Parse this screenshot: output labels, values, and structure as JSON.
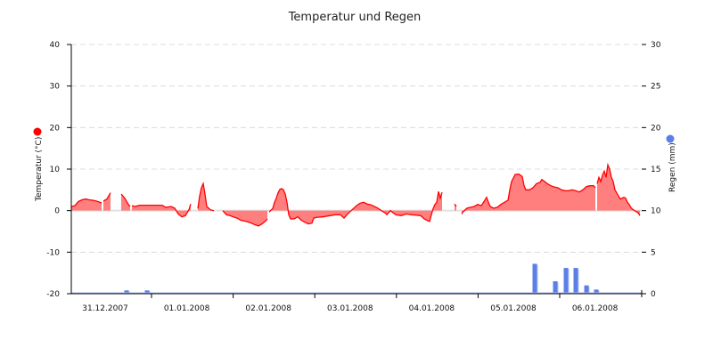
{
  "chart_data": {
    "type": "area+bar",
    "title": "Temperatur und Regen",
    "x_labels": [
      "31.12.2007",
      "01.01.2008",
      "02.01.2008",
      "03.01.2008",
      "04.01.2008",
      "05.01.2008",
      "06.01.2008"
    ],
    "y_left": {
      "label": "Temperatur (°C)",
      "ticks": [
        40,
        30,
        20,
        10,
        0,
        -10,
        -20
      ],
      "range": [
        -20,
        40
      ],
      "legend_color": "#ff0000"
    },
    "y_right": {
      "label": "Regen (mm)",
      "ticks": [
        30,
        25,
        20,
        15,
        10,
        5,
        0
      ],
      "range": [
        0,
        30
      ],
      "legend_color": "#5b7fe8"
    },
    "grid": true,
    "series": [
      {
        "name": "Temperatur",
        "type": "area",
        "color": "#ff0000",
        "fill": "#ff7f7f",
        "unit": "°C",
        "segments": [
          [
            [
              80,
              1.0
            ],
            [
              84,
              1.2
            ],
            [
              88,
              2.2
            ],
            [
              92,
              2.6
            ],
            [
              96,
              2.8
            ],
            [
              100,
              2.6
            ],
            [
              104,
              2.5
            ],
            [
              108,
              2.3
            ],
            [
              112,
              2.0
            ],
            [
              114,
              1.9
            ]
          ],
          [
            [
              116,
              2.3
            ],
            [
              120,
              2.8
            ],
            [
              124,
              4.3
            ]
          ],
          [
            [
              136,
              4.0
            ],
            [
              140,
              3.0
            ],
            [
              144,
              1.5
            ],
            [
              146,
              1.0
            ]
          ],
          [
            [
              148,
              1.2
            ],
            [
              152,
              1.0
            ],
            [
              156,
              1.3
            ],
            [
              160,
              1.3
            ],
            [
              168,
              1.3
            ],
            [
              176,
              1.3
            ],
            [
              182,
              1.3
            ],
            [
              186,
              0.8
            ],
            [
              192,
              1.0
            ],
            [
              196,
              0.6
            ],
            [
              200,
              -0.8
            ],
            [
              204,
              -1.5
            ],
            [
              208,
              -1.2
            ],
            [
              212,
              0.2
            ],
            [
              214,
              1.6
            ]
          ],
          [
            [
              222,
              0.5
            ],
            [
              224,
              3.5
            ],
            [
              226,
              5.5
            ],
            [
              228,
              6.5
            ],
            [
              230,
              4.0
            ],
            [
              232,
              1.0
            ],
            [
              236,
              0.2
            ],
            [
              240,
              0.0
            ]
          ],
          [
            [
              250,
              0.0
            ],
            [
              254,
              -1.0
            ],
            [
              258,
              -1.2
            ],
            [
              262,
              -1.5
            ],
            [
              266,
              -1.8
            ],
            [
              270,
              -2.3
            ],
            [
              274,
              -2.5
            ],
            [
              278,
              -2.7
            ],
            [
              282,
              -3.0
            ],
            [
              286,
              -3.4
            ],
            [
              290,
              -3.7
            ],
            [
              294,
              -3.2
            ],
            [
              298,
              -2.5
            ],
            [
              300,
              -2.0
            ]
          ],
          [
            [
              302,
              -0.3
            ],
            [
              306,
              0.5
            ],
            [
              308,
              2.0
            ],
            [
              310,
              3.0
            ],
            [
              312,
              4.3
            ],
            [
              314,
              5.1
            ],
            [
              316,
              5.3
            ],
            [
              318,
              5.0
            ],
            [
              320,
              4.0
            ],
            [
              322,
              2.0
            ],
            [
              324,
              -1.0
            ],
            [
              326,
              -2.0
            ],
            [
              330,
              -2.0
            ],
            [
              334,
              -1.5
            ],
            [
              338,
              -2.3
            ],
            [
              342,
              -2.8
            ],
            [
              346,
              -3.2
            ],
            [
              350,
              -3.0
            ],
            [
              352,
              -1.8
            ],
            [
              356,
              -1.6
            ],
            [
              362,
              -1.5
            ],
            [
              370,
              -1.2
            ],
            [
              376,
              -1.0
            ],
            [
              382,
              -1.0
            ],
            [
              386,
              -1.8
            ],
            [
              390,
              -0.8
            ],
            [
              394,
              0.0
            ],
            [
              400,
              1.2
            ],
            [
              404,
              1.8
            ],
            [
              408,
              2.0
            ],
            [
              412,
              1.6
            ],
            [
              416,
              1.4
            ],
            [
              420,
              1.0
            ],
            [
              424,
              0.6
            ],
            [
              428,
              0.0
            ],
            [
              432,
              -0.5
            ],
            [
              434,
              -1.0
            ],
            [
              438,
              0.0
            ],
            [
              444,
              -1.0
            ],
            [
              450,
              -1.2
            ],
            [
              456,
              -0.8
            ],
            [
              462,
              -1.0
            ],
            [
              468,
              -1.1
            ],
            [
              472,
              -1.2
            ],
            [
              476,
              -2.0
            ],
            [
              480,
              -2.4
            ],
            [
              482,
              -2.6
            ],
            [
              484,
              -1.0
            ],
            [
              486,
              0.5
            ],
            [
              488,
              1.5
            ],
            [
              490,
              2.0
            ],
            [
              492,
              4.6
            ],
            [
              494,
              3.0
            ],
            [
              496,
              4.4
            ]
          ],
          [
            [
              510,
              1.6
            ],
            [
              512,
              1.0
            ]
          ],
          [
            [
              518,
              -0.8
            ],
            [
              520,
              -0.2
            ],
            [
              524,
              0.6
            ],
            [
              528,
              0.8
            ],
            [
              532,
              1.0
            ],
            [
              536,
              1.5
            ],
            [
              540,
              1.2
            ],
            [
              544,
              2.5
            ],
            [
              546,
              3.2
            ],
            [
              548,
              2.0
            ],
            [
              550,
              1.0
            ],
            [
              554,
              0.6
            ],
            [
              558,
              0.8
            ],
            [
              562,
              1.5
            ],
            [
              566,
              2.0
            ],
            [
              570,
              2.5
            ],
            [
              572,
              5.0
            ],
            [
              574,
              7.0
            ],
            [
              578,
              8.7
            ],
            [
              582,
              8.8
            ],
            [
              586,
              8.2
            ],
            [
              588,
              6.0
            ],
            [
              590,
              5.0
            ],
            [
              594,
              5.0
            ],
            [
              598,
              5.5
            ],
            [
              602,
              6.5
            ],
            [
              606,
              6.8
            ],
            [
              608,
              7.5
            ],
            [
              610,
              7.2
            ],
            [
              614,
              6.5
            ],
            [
              618,
              6.0
            ],
            [
              622,
              5.7
            ],
            [
              626,
              5.5
            ],
            [
              630,
              5.0
            ],
            [
              634,
              4.8
            ],
            [
              638,
              4.8
            ],
            [
              642,
              5.0
            ],
            [
              646,
              4.8
            ],
            [
              650,
              4.5
            ],
            [
              654,
              5.0
            ],
            [
              658,
              5.8
            ],
            [
              662,
              6.0
            ],
            [
              666,
              6.0
            ],
            [
              668,
              5.5
            ]
          ],
          [
            [
              670,
              6.5
            ],
            [
              672,
              8.0
            ],
            [
              674,
              7.0
            ],
            [
              676,
              8.5
            ],
            [
              678,
              9.5
            ],
            [
              680,
              8.0
            ],
            [
              682,
              11.0
            ],
            [
              684,
              10.0
            ],
            [
              686,
              8.0
            ],
            [
              688,
              7.0
            ],
            [
              690,
              5.0
            ],
            [
              694,
              3.5
            ],
            [
              696,
              2.8
            ],
            [
              700,
              3.2
            ],
            [
              702,
              3.0
            ],
            [
              704,
              2.0
            ],
            [
              706,
              1.5
            ],
            [
              708,
              0.7
            ],
            [
              710,
              0.3
            ],
            [
              712,
              0.0
            ],
            [
              716,
              -0.5
            ],
            [
              718,
              -1.2
            ]
          ]
        ]
      },
      {
        "name": "Regen",
        "type": "bar",
        "color": "#5b7fe8",
        "unit": "mm",
        "bars": [
          {
            "x": 142,
            "value": 0.4
          },
          {
            "x": 165,
            "value": 0.4
          },
          {
            "x": 600,
            "value": 3.6
          },
          {
            "x": 623,
            "value": 1.5
          },
          {
            "x": 635,
            "value": 3.1
          },
          {
            "x": 646,
            "value": 3.1
          },
          {
            "x": 658,
            "value": 1.0
          },
          {
            "x": 669,
            "value": 0.5
          }
        ]
      }
    ]
  }
}
